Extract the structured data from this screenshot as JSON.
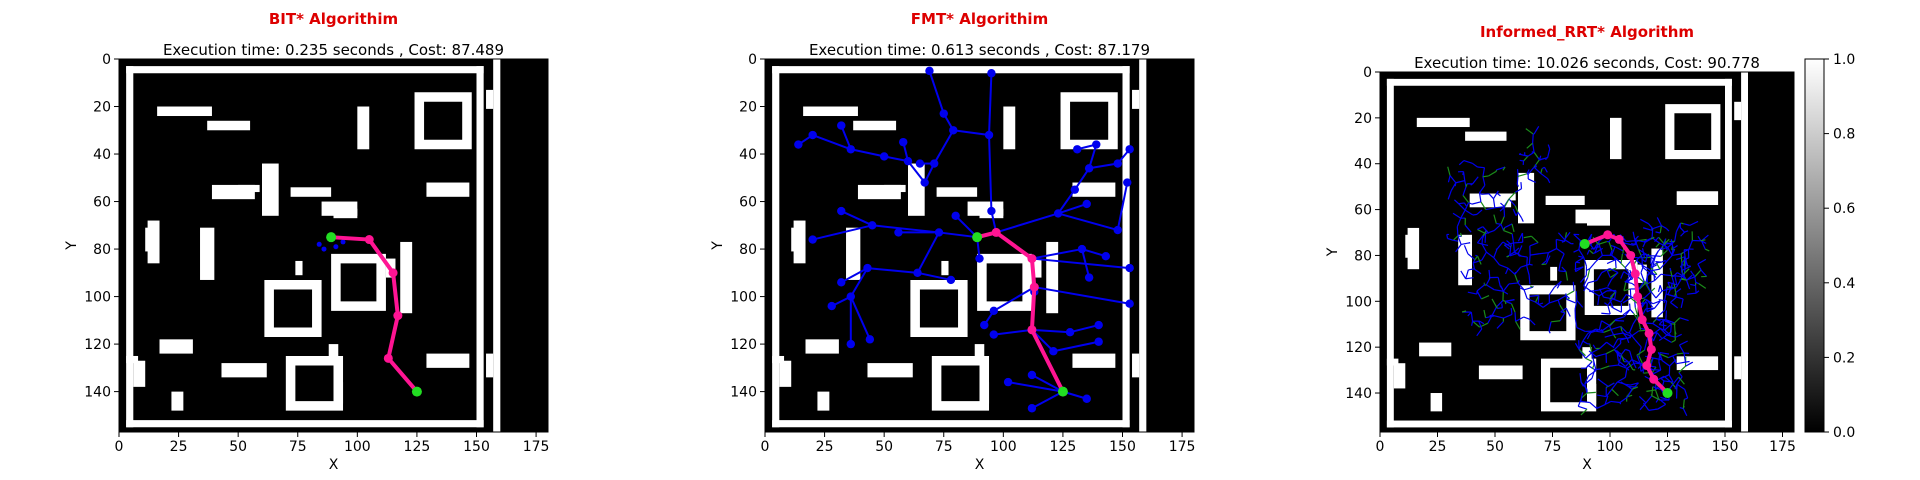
{
  "colors": {
    "title": "#dd0000",
    "tree": "#0000ee",
    "tree_alt": "#1a8a1a",
    "path": "#ff1493",
    "endpoint": "#22dd22",
    "obstacle": "#ffffff",
    "free": "#000000"
  },
  "colorbar": {
    "ticks": [
      "0.0",
      "0.2",
      "0.4",
      "0.6",
      "0.8",
      "1.0"
    ],
    "values": [
      0.0,
      0.2,
      0.4,
      0.6,
      0.8,
      1.0
    ]
  },
  "chart_data": [
    {
      "type": "scatter",
      "title": "BIT* Algorithim",
      "subtitle": "Execution time: 0.235 seconds , Cost: 87.489",
      "xlabel": "X",
      "ylabel": "Y",
      "xlim": [
        0,
        180
      ],
      "ylim": [
        157,
        0
      ],
      "xticks": [
        "0",
        "25",
        "50",
        "75",
        "100",
        "125",
        "150",
        "175"
      ],
      "xtick_values": [
        0,
        25,
        50,
        75,
        100,
        125,
        150,
        175
      ],
      "yticks": [
        "0",
        "20",
        "40",
        "60",
        "80",
        "100",
        "120",
        "140"
      ],
      "ytick_values": [
        0,
        20,
        40,
        60,
        80,
        100,
        120,
        140
      ],
      "start": [
        89,
        75
      ],
      "goal": [
        125,
        140
      ],
      "path": [
        [
          89,
          75
        ],
        [
          105,
          76
        ],
        [
          115,
          90
        ],
        [
          117,
          108
        ],
        [
          113,
          126
        ],
        [
          125,
          140
        ]
      ],
      "tree_edges": [],
      "extra_nodes": [
        [
          84,
          78
        ],
        [
          86,
          80
        ],
        [
          91,
          79
        ],
        [
          94,
          77
        ]
      ]
    },
    {
      "type": "scatter",
      "title": "FMT* Algorithim",
      "subtitle": "Execution time: 0.613 seconds , Cost: 87.179",
      "xlabel": "X",
      "ylabel": "Y",
      "xlim": [
        0,
        180
      ],
      "ylim": [
        157,
        0
      ],
      "xticks": [
        "0",
        "25",
        "50",
        "75",
        "100",
        "125",
        "150",
        "175"
      ],
      "xtick_values": [
        0,
        25,
        50,
        75,
        100,
        125,
        150,
        175
      ],
      "yticks": [
        "0",
        "20",
        "40",
        "60",
        "80",
        "100",
        "120",
        "140"
      ],
      "ytick_values": [
        0,
        20,
        40,
        60,
        80,
        100,
        120,
        140
      ],
      "start": [
        89,
        75
      ],
      "goal": [
        125,
        140
      ],
      "path": [
        [
          89,
          75
        ],
        [
          97,
          73
        ],
        [
          112,
          84
        ],
        [
          113,
          96
        ],
        [
          112,
          114
        ],
        [
          125,
          140
        ]
      ],
      "tree_edges": [
        [
          [
            89,
            75
          ],
          [
            80,
            66
          ]
        ],
        [
          [
            89,
            75
          ],
          [
            73,
            73
          ]
        ],
        [
          [
            73,
            73
          ],
          [
            45,
            70
          ]
        ],
        [
          [
            45,
            70
          ],
          [
            20,
            76
          ]
        ],
        [
          [
            73,
            73
          ],
          [
            56,
            73
          ]
        ],
        [
          [
            45,
            70
          ],
          [
            32,
            64
          ]
        ],
        [
          [
            97,
            73
          ],
          [
            95,
            64
          ]
        ],
        [
          [
            95,
            64
          ],
          [
            94,
            32
          ]
        ],
        [
          [
            94,
            32
          ],
          [
            95,
            6
          ]
        ],
        [
          [
            94,
            32
          ],
          [
            79,
            30
          ]
        ],
        [
          [
            79,
            30
          ],
          [
            75,
            23
          ]
        ],
        [
          [
            75,
            23
          ],
          [
            69,
            5
          ]
        ],
        [
          [
            79,
            30
          ],
          [
            71,
            44
          ]
        ],
        [
          [
            71,
            44
          ],
          [
            65,
            44
          ]
        ],
        [
          [
            71,
            44
          ],
          [
            67,
            52
          ]
        ],
        [
          [
            67,
            52
          ],
          [
            60,
            43
          ]
        ],
        [
          [
            60,
            43
          ],
          [
            50,
            41
          ]
        ],
        [
          [
            50,
            41
          ],
          [
            36,
            38
          ]
        ],
        [
          [
            36,
            38
          ],
          [
            20,
            32
          ]
        ],
        [
          [
            20,
            32
          ],
          [
            14,
            36
          ]
        ],
        [
          [
            36,
            38
          ],
          [
            32,
            28
          ]
        ],
        [
          [
            60,
            43
          ],
          [
            58,
            35
          ]
        ],
        [
          [
            97,
            73
          ],
          [
            123,
            65
          ]
        ],
        [
          [
            123,
            65
          ],
          [
            135,
            61
          ]
        ],
        [
          [
            123,
            65
          ],
          [
            130,
            55
          ]
        ],
        [
          [
            130,
            55
          ],
          [
            136,
            46
          ]
        ],
        [
          [
            136,
            46
          ],
          [
            148,
            44
          ]
        ],
        [
          [
            136,
            46
          ],
          [
            139,
            36
          ]
        ],
        [
          [
            148,
            44
          ],
          [
            153,
            38
          ]
        ],
        [
          [
            139,
            36
          ],
          [
            131,
            38
          ]
        ],
        [
          [
            123,
            65
          ],
          [
            148,
            72
          ]
        ],
        [
          [
            148,
            72
          ],
          [
            152,
            52
          ]
        ],
        [
          [
            112,
            84
          ],
          [
            133,
            80
          ]
        ],
        [
          [
            133,
            80
          ],
          [
            136,
            92
          ]
        ],
        [
          [
            133,
            80
          ],
          [
            143,
            83
          ]
        ],
        [
          [
            112,
            84
          ],
          [
            153,
            88
          ]
        ],
        [
          [
            113,
            96
          ],
          [
            153,
            103
          ]
        ],
        [
          [
            112,
            114
          ],
          [
            113,
            98
          ]
        ],
        [
          [
            112,
            114
          ],
          [
            128,
            115
          ]
        ],
        [
          [
            128,
            115
          ],
          [
            140,
            112
          ]
        ],
        [
          [
            112,
            114
          ],
          [
            121,
            123
          ]
        ],
        [
          [
            121,
            123
          ],
          [
            140,
            119
          ]
        ],
        [
          [
            113,
            96
          ],
          [
            96,
            106
          ]
        ],
        [
          [
            96,
            106
          ],
          [
            92,
            112
          ]
        ],
        [
          [
            112,
            114
          ],
          [
            96,
            116
          ]
        ],
        [
          [
            125,
            140
          ],
          [
            112,
            133
          ]
        ],
        [
          [
            125,
            140
          ],
          [
            135,
            143
          ]
        ],
        [
          [
            125,
            140
          ],
          [
            102,
            136
          ]
        ],
        [
          [
            125,
            140
          ],
          [
            112,
            147
          ]
        ],
        [
          [
            73,
            73
          ],
          [
            64,
            90
          ]
        ],
        [
          [
            64,
            90
          ],
          [
            43,
            88
          ]
        ],
        [
          [
            43,
            88
          ],
          [
            32,
            94
          ]
        ],
        [
          [
            43,
            88
          ],
          [
            36,
            100
          ]
        ],
        [
          [
            36,
            100
          ],
          [
            28,
            104
          ]
        ],
        [
          [
            36,
            100
          ],
          [
            36,
            120
          ]
        ],
        [
          [
            36,
            100
          ],
          [
            44,
            118
          ]
        ],
        [
          [
            64,
            90
          ],
          [
            78,
            93
          ]
        ],
        [
          [
            89,
            75
          ],
          [
            90,
            84
          ]
        ]
      ],
      "extra_nodes": []
    },
    {
      "type": "scatter",
      "title": "Informed_RRT* Algorithm",
      "subtitle": "Execution time: 10.026 seconds, Cost: 90.778",
      "xlabel": "X",
      "ylabel": "Y",
      "xlim": [
        0,
        180
      ],
      "ylim": [
        157,
        0
      ],
      "xticks": [
        "0",
        "25",
        "50",
        "75",
        "100",
        "125",
        "150",
        "175"
      ],
      "xtick_values": [
        0,
        25,
        50,
        75,
        100,
        125,
        150,
        175
      ],
      "yticks": [
        "0",
        "20",
        "40",
        "60",
        "80",
        "100",
        "120",
        "140"
      ],
      "ytick_values": [
        0,
        20,
        40,
        60,
        80,
        100,
        120,
        140
      ],
      "start": [
        89,
        75
      ],
      "goal": [
        125,
        140
      ],
      "path": [
        [
          89,
          75
        ],
        [
          99,
          71
        ],
        [
          104,
          73
        ],
        [
          109,
          80
        ],
        [
          111,
          88
        ],
        [
          112,
          98
        ],
        [
          114,
          108
        ],
        [
          117,
          114
        ],
        [
          118,
          121
        ],
        [
          116,
          128
        ],
        [
          119,
          134
        ],
        [
          125,
          140
        ]
      ],
      "tree_edges": [],
      "extra_nodes": [],
      "dense_tree": true
    }
  ]
}
